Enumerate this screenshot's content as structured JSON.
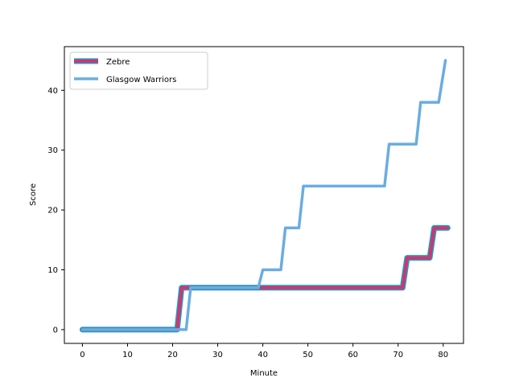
{
  "chart_data": {
    "type": "line",
    "xlabel": "Minute",
    "ylabel": "Score",
    "xlim": [
      -4,
      84.5
    ],
    "ylim": [
      -2.3,
      47.3
    ],
    "xticks": [
      0,
      10,
      20,
      30,
      40,
      50,
      60,
      70,
      80
    ],
    "yticks": [
      0,
      10,
      20,
      30,
      40
    ],
    "grid": false,
    "legend_position": "top-left",
    "series": [
      {
        "name": "Zebre",
        "color": "#d6336c",
        "edge_color": "#17a0c8",
        "points": [
          [
            0,
            0
          ],
          [
            21,
            0
          ],
          [
            22,
            7
          ],
          [
            71,
            7
          ],
          [
            72,
            12
          ],
          [
            77,
            12
          ],
          [
            78,
            17
          ],
          [
            81,
            17
          ]
        ]
      },
      {
        "name": "Glasgow Warriors",
        "color": "#6aade0",
        "points": [
          [
            0,
            0
          ],
          [
            23,
            0
          ],
          [
            24,
            7
          ],
          [
            39,
            7
          ],
          [
            40,
            10
          ],
          [
            44,
            10
          ],
          [
            45,
            17
          ],
          [
            48,
            17
          ],
          [
            49,
            24
          ],
          [
            67,
            24
          ],
          [
            68,
            31
          ],
          [
            74,
            31
          ],
          [
            75,
            38
          ],
          [
            79,
            38
          ],
          [
            80.5,
            45
          ]
        ]
      }
    ]
  }
}
